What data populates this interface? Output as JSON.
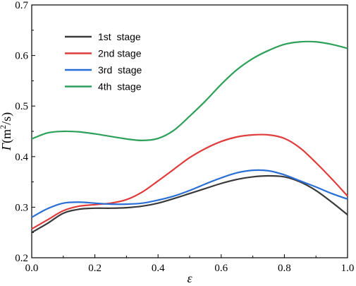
{
  "chart_data": {
    "type": "line",
    "xlabel": "ε",
    "ylabel": {
      "symbol": "Γ",
      "unit_open": "(m",
      "unit_sup": "2",
      "unit_close": "/s)"
    },
    "xlim": [
      0.0,
      1.0
    ],
    "ylim": [
      0.2,
      0.7
    ],
    "xticks": [
      0.0,
      0.2,
      0.4,
      0.6,
      0.8,
      1.0
    ],
    "xtick_labels": [
      "0.0",
      "0.2",
      "0.4",
      "0.6",
      "0.8",
      "1.0"
    ],
    "yticks": [
      0.2,
      0.3,
      0.4,
      0.5,
      0.6,
      0.7
    ],
    "ytick_labels": [
      "0.2",
      "0.3",
      "0.4",
      "0.5",
      "0.6",
      "0.7"
    ],
    "grid": false,
    "legend_position": "top-left",
    "series": [
      {
        "name": "1st  stage",
        "color": "#3a3a3a",
        "x": [
          0.0,
          0.05,
          0.1,
          0.15,
          0.2,
          0.25,
          0.3,
          0.35,
          0.4,
          0.45,
          0.5,
          0.55,
          0.6,
          0.65,
          0.7,
          0.75,
          0.8,
          0.85,
          0.9,
          0.95,
          1.0
        ],
        "y": [
          0.25,
          0.268,
          0.288,
          0.296,
          0.298,
          0.298,
          0.299,
          0.302,
          0.308,
          0.317,
          0.327,
          0.337,
          0.347,
          0.355,
          0.36,
          0.362,
          0.36,
          0.35,
          0.333,
          0.31,
          0.285
        ]
      },
      {
        "name": "2nd stage",
        "color": "#e03c3c",
        "x": [
          0.0,
          0.05,
          0.1,
          0.15,
          0.2,
          0.25,
          0.3,
          0.35,
          0.4,
          0.45,
          0.5,
          0.55,
          0.6,
          0.65,
          0.7,
          0.75,
          0.8,
          0.85,
          0.9,
          0.95,
          1.0
        ],
        "y": [
          0.257,
          0.275,
          0.293,
          0.302,
          0.305,
          0.308,
          0.315,
          0.33,
          0.352,
          0.375,
          0.398,
          0.416,
          0.43,
          0.439,
          0.443,
          0.443,
          0.436,
          0.417,
          0.388,
          0.356,
          0.322
        ]
      },
      {
        "name": "3rd  stage",
        "color": "#2a6fd6",
        "x": [
          0.0,
          0.05,
          0.1,
          0.15,
          0.2,
          0.25,
          0.3,
          0.35,
          0.4,
          0.45,
          0.5,
          0.55,
          0.6,
          0.65,
          0.7,
          0.75,
          0.8,
          0.85,
          0.9,
          0.95,
          1.0
        ],
        "y": [
          0.28,
          0.297,
          0.308,
          0.31,
          0.308,
          0.306,
          0.306,
          0.308,
          0.314,
          0.322,
          0.333,
          0.346,
          0.358,
          0.368,
          0.373,
          0.372,
          0.364,
          0.352,
          0.34,
          0.327,
          0.316
        ]
      },
      {
        "name": "4th  stage",
        "color": "#2ea05a",
        "x": [
          0.0,
          0.05,
          0.1,
          0.15,
          0.2,
          0.25,
          0.3,
          0.35,
          0.4,
          0.45,
          0.5,
          0.55,
          0.6,
          0.65,
          0.7,
          0.75,
          0.8,
          0.85,
          0.9,
          0.95,
          1.0
        ],
        "y": [
          0.435,
          0.447,
          0.45,
          0.449,
          0.445,
          0.44,
          0.435,
          0.432,
          0.436,
          0.452,
          0.48,
          0.51,
          0.543,
          0.572,
          0.594,
          0.61,
          0.622,
          0.627,
          0.627,
          0.622,
          0.614
        ]
      }
    ]
  }
}
